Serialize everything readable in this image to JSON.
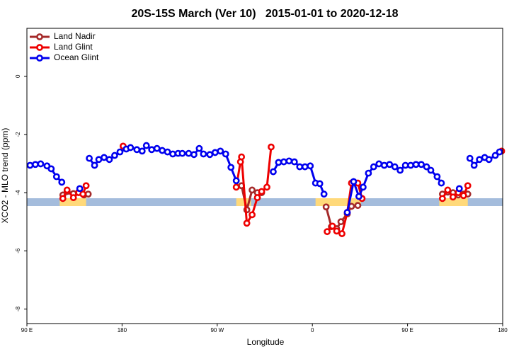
{
  "chart_data": {
    "type": "line",
    "title": "20S-15S March (Ver 10)   2015-01-01 to 2020-12-18",
    "xlabel": "Longitude",
    "ylabel": "XCO2 - MLO trend (ppm)",
    "xlim": [
      90,
      540
    ],
    "xticks": [
      {
        "value": 90,
        "label": "90 E"
      },
      180,
      {
        "value": 270,
        "label": "90 W"
      },
      {
        "value": 360,
        "label": "0"
      },
      {
        "value": 450,
        "label": "90 E"
      },
      {
        "value": 540,
        "label": "180"
      }
    ],
    "ylim": [
      -8.5,
      1.65
    ],
    "yticks": [
      0,
      -2,
      -4,
      -6,
      -8
    ],
    "legend": "upper left",
    "land_segments": [
      [
        121,
        146
      ],
      [
        288,
        302
      ],
      [
        363,
        406
      ],
      [
        480,
        507
      ]
    ],
    "land_color": "#ffd97a",
    "ocean_color": "#a4bcdc",
    "series": [
      {
        "name": "Land Nadir",
        "color": "#a52a2a",
        "x": [
          124,
          128,
          134,
          139,
          144,
          148,
          null,
          293,
          298,
          303,
          308,
          312,
          null,
          373,
          378,
          383,
          387,
          393,
          397,
          403,
          null,
          483,
          488,
          493,
          498,
          503,
          507
        ],
        "values": [
          -4.08,
          -3.96,
          -4.03,
          -3.98,
          -4.08,
          -4.05,
          null,
          -3.76,
          -4.59,
          -3.91,
          -4.0,
          -4.0,
          null,
          -4.49,
          -5.17,
          -5.24,
          -5.0,
          -4.73,
          -4.47,
          -4.44,
          null,
          -4.05,
          -3.98,
          -4.0,
          -4.08,
          -4.05,
          -4.05
        ]
      },
      {
        "name": "Land Glint",
        "color": "#ee0000",
        "x": [
          124,
          128,
          134,
          139,
          143,
          146,
          null,
          181,
          null,
          288,
          292,
          293,
          298,
          303,
          308,
          312,
          317,
          321,
          null,
          374,
          379,
          383,
          388,
          393,
          397,
          403,
          407,
          null,
          483,
          488,
          493,
          498,
          503,
          507,
          null,
          539
        ],
        "values": [
          -4.2,
          -3.91,
          -4.17,
          -4.0,
          -4.05,
          -3.76,
          null,
          -2.4,
          null,
          -3.81,
          -2.94,
          -2.77,
          -5.05,
          -4.76,
          -4.17,
          -3.96,
          -3.81,
          -2.43,
          null,
          -5.34,
          -5.15,
          -5.32,
          -5.41,
          -4.68,
          -3.67,
          -3.67,
          -4.2,
          null,
          -4.2,
          -3.91,
          -4.15,
          -4.0,
          -4.1,
          -3.76,
          null,
          -2.57
        ]
      },
      {
        "name": "Ocean Glint",
        "color": "#0000ee",
        "x": [
          93,
          98,
          103,
          109,
          113,
          118,
          123,
          null,
          140,
          null,
          149,
          154,
          158,
          163,
          168,
          173,
          178,
          184,
          188,
          194,
          199,
          203,
          208,
          213,
          218,
          223,
          228,
          233,
          237,
          243,
          248,
          253,
          257,
          263,
          268,
          273,
          278,
          283,
          288,
          null,
          323,
          328,
          333,
          338,
          343,
          348,
          353,
          358,
          363,
          367,
          371,
          null,
          393,
          399,
          404,
          408,
          413,
          418,
          423,
          428,
          433,
          438,
          443,
          448,
          453,
          458,
          463,
          468,
          472,
          478,
          482,
          null,
          499,
          null,
          509,
          513,
          518,
          523,
          527,
          533,
          537
        ],
        "values": [
          -3.06,
          -3.03,
          -3.01,
          -3.08,
          -3.18,
          -3.45,
          -3.64,
          null,
          -3.86,
          null,
          -2.82,
          -3.06,
          -2.86,
          -2.79,
          -2.86,
          -2.72,
          -2.6,
          -2.5,
          -2.45,
          -2.52,
          -2.57,
          -2.38,
          -2.52,
          -2.48,
          -2.55,
          -2.6,
          -2.67,
          -2.65,
          -2.65,
          -2.65,
          -2.69,
          -2.48,
          -2.67,
          -2.69,
          -2.62,
          -2.57,
          -2.67,
          -3.13,
          -3.59,
          null,
          -3.28,
          -2.96,
          -2.94,
          -2.91,
          -2.94,
          -3.11,
          -3.11,
          -3.08,
          -3.67,
          -3.69,
          -4.05,
          null,
          -4.68,
          -3.62,
          -4.13,
          -3.81,
          -3.33,
          -3.11,
          -3.01,
          -3.06,
          -3.03,
          -3.11,
          -3.23,
          -3.06,
          -3.06,
          -3.03,
          -3.03,
          -3.11,
          -3.23,
          -3.45,
          -3.67,
          null,
          -3.86,
          null,
          -2.82,
          -3.06,
          -2.86,
          -2.79,
          -2.86,
          -2.72,
          -2.6
        ]
      }
    ]
  }
}
